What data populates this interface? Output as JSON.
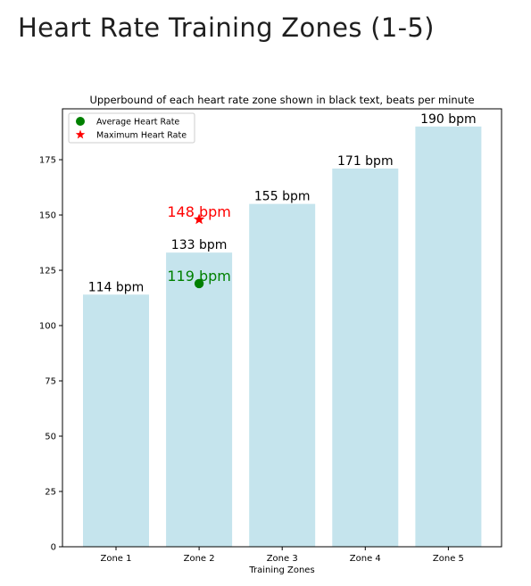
{
  "page": {
    "title": "Heart Rate Training Zones (1-5)"
  },
  "chart_data": {
    "type": "bar",
    "title": "Upperbound of each heart rate zone shown in black text, beats per minute",
    "xlabel": "Training Zones",
    "ylabel": "",
    "categories": [
      "Zone 1",
      "Zone 2",
      "Zone 3",
      "Zone 4",
      "Zone 5"
    ],
    "values": [
      114,
      133,
      155,
      171,
      190
    ],
    "data_labels": [
      "114 bpm",
      "133 bpm",
      "155 bpm",
      "171 bpm",
      "190 bpm"
    ],
    "ylim": [
      0,
      198
    ],
    "yticks": [
      0,
      25,
      50,
      75,
      100,
      125,
      150,
      175
    ],
    "bar_color": "#c5e4ed",
    "grid": false,
    "legend_position": "top-left",
    "markers": [
      {
        "name": "Average Heart Rate",
        "category": "Zone 2",
        "value": 119,
        "label": "119 bpm",
        "symbol": "circle",
        "color": "#008000"
      },
      {
        "name": "Maximum Heart Rate",
        "category": "Zone 2",
        "value": 148,
        "label": "148 bpm",
        "symbol": "star",
        "color": "#ff0000"
      }
    ]
  }
}
